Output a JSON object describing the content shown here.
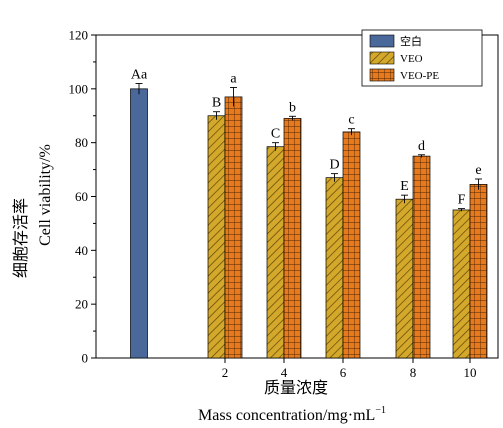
{
  "chart_data": {
    "type": "bar",
    "xlabel_cn": "质量浓度",
    "xlabel_en": "Mass concentration/mg·mL",
    "xlabel_en_sup": "−1",
    "ylabel_cn": "细胞存活率",
    "ylabel_en": "Cell viability/%",
    "ylim": [
      0,
      120
    ],
    "yticks": [
      0,
      20,
      40,
      60,
      80,
      100,
      120
    ],
    "categories": [
      "",
      "2",
      "4",
      "6",
      "8",
      "10"
    ],
    "series": [
      {
        "name": "空白",
        "color": "#4a6899",
        "pattern": "solid",
        "values": [
          100,
          null,
          null,
          null,
          null,
          null
        ],
        "errors": [
          2,
          null,
          null,
          null,
          null,
          null
        ],
        "labels": [
          "Aa",
          null,
          null,
          null,
          null,
          null
        ]
      },
      {
        "name": "VEO",
        "color": "#d4a82a",
        "pattern": "hatch",
        "values": [
          null,
          90,
          78.5,
          67,
          59,
          55
        ],
        "errors": [
          null,
          1.5,
          1.5,
          1.5,
          1.5,
          0.5
        ],
        "labels": [
          null,
          "B",
          "C",
          "D",
          "E",
          "F"
        ]
      },
      {
        "name": "VEO-PE",
        "color": "#e87a1e",
        "pattern": "grid",
        "values": [
          null,
          97,
          89,
          84,
          75,
          64.5
        ],
        "errors": [
          null,
          3.5,
          0.8,
          1.2,
          0.5,
          2
        ],
        "labels": [
          null,
          "a",
          "b",
          "c",
          "d",
          "e"
        ]
      }
    ],
    "legend_position": "top-right"
  }
}
